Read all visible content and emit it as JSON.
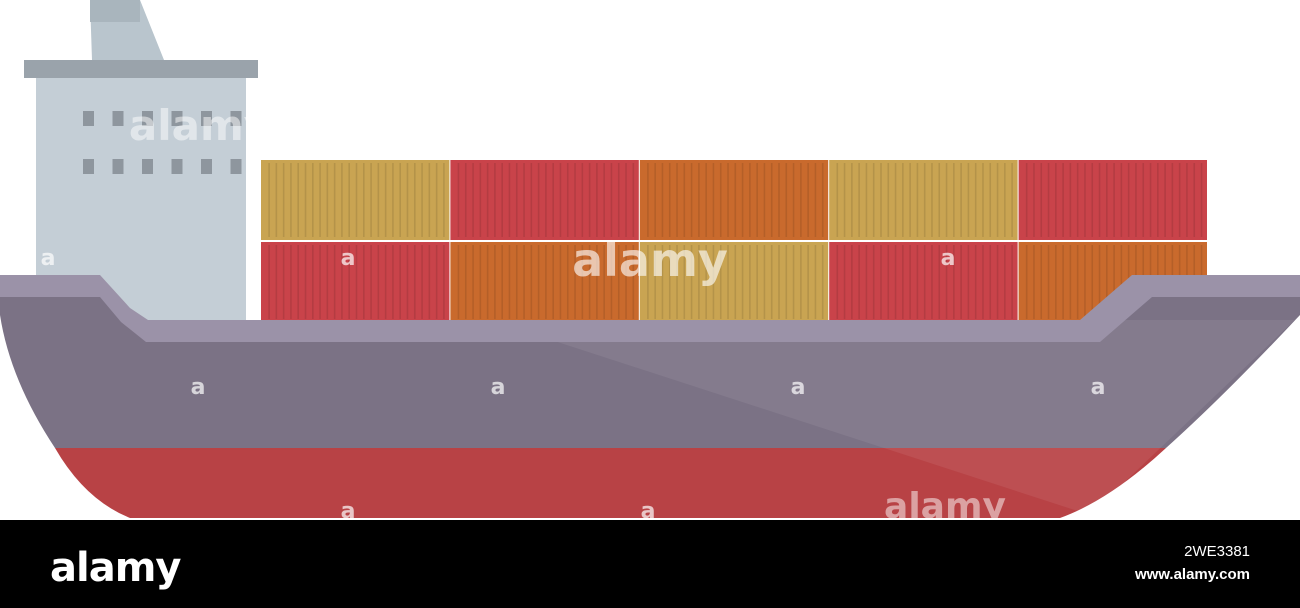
{
  "scene": {
    "subject": "container ship",
    "colors": {
      "background": "#ffffff",
      "funnel": "#b9c5cd",
      "bridge_roof": "#9aa3ab",
      "bridge": "#c4ced6",
      "window": "#8e969e",
      "deck": "#9b92a8",
      "hull_upper": "#7b7285",
      "hull_lower": "#b84245",
      "container_yellow": "#c9a452",
      "container_red": "#c9434a",
      "container_orange": "#c96a2d"
    },
    "container_rows": [
      [
        "yellow",
        "red",
        "orange",
        "yellow",
        "red"
      ],
      [
        "red",
        "orange",
        "yellow",
        "red",
        "orange"
      ]
    ]
  },
  "watermark": {
    "brand": "alamy",
    "small_mark": "a"
  },
  "footer": {
    "logo_text": "alamy",
    "image_id": "2WE3381",
    "site_url": "www.alamy.com"
  }
}
